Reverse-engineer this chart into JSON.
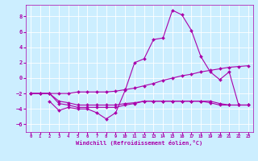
{
  "bg_color": "#cceeff",
  "grid_color": "#ffffff",
  "line_color": "#aa00aa",
  "xlabel": "Windchill (Refroidissement éolien,°C)",
  "xlim": [
    -0.5,
    23.5
  ],
  "ylim": [
    -7,
    9.5
  ],
  "yticks": [
    -6,
    -4,
    -2,
    0,
    2,
    4,
    6,
    8
  ],
  "xticks": [
    0,
    1,
    2,
    3,
    4,
    5,
    6,
    7,
    8,
    9,
    10,
    11,
    12,
    13,
    14,
    15,
    16,
    17,
    18,
    19,
    20,
    21,
    22,
    23
  ],
  "series": [
    {
      "x": [
        0,
        1,
        2,
        3,
        4,
        5,
        6,
        7,
        8,
        9,
        10,
        11,
        12,
        13,
        14,
        15,
        16,
        17,
        18,
        19,
        20,
        21,
        22,
        23
      ],
      "y": [
        -2,
        -2,
        -2,
        -2,
        -2,
        -1.8,
        -1.8,
        -1.8,
        -1.8,
        -1.7,
        -1.5,
        -1.3,
        -1.0,
        -0.7,
        -0.3,
        0,
        0.3,
        0.5,
        0.8,
        1.0,
        1.2,
        1.4,
        1.5,
        1.6
      ]
    },
    {
      "x": [
        0,
        1,
        2,
        3,
        4,
        5,
        6,
        7,
        8,
        9,
        10,
        11,
        12,
        13,
        14,
        15,
        16,
        17,
        18,
        19,
        20,
        21,
        22,
        23
      ],
      "y": [
        -2,
        -2,
        -2,
        -3,
        -3.2,
        -3.5,
        -3.5,
        -3.5,
        -3.5,
        -3.5,
        -3.3,
        -3.2,
        -3.0,
        -3.0,
        -3.0,
        -3.0,
        -3.0,
        -3.0,
        -3.0,
        -3.0,
        -3.3,
        -3.5,
        -3.5,
        -3.5
      ]
    },
    {
      "x": [
        2,
        3,
        4,
        5,
        6,
        7,
        8,
        9,
        10,
        11,
        12,
        13,
        14,
        15,
        16,
        17,
        18,
        19,
        20,
        21,
        22,
        23
      ],
      "y": [
        -3,
        -4.2,
        -3.8,
        -4,
        -4,
        -4.5,
        -5.3,
        -4.5,
        -1.6,
        2,
        2.5,
        5,
        5.2,
        8.8,
        8.2,
        6.2,
        2.8,
        0.8,
        -0.2,
        0.8,
        -3.5,
        -3.5
      ]
    },
    {
      "x": [
        0,
        1,
        2,
        3,
        4,
        5,
        6,
        7,
        8,
        9,
        10,
        11,
        12,
        13,
        14,
        15,
        16,
        17,
        18,
        19,
        20,
        21,
        22,
        23
      ],
      "y": [
        -2,
        -2,
        -2,
        -3.3,
        -3.5,
        -3.8,
        -3.8,
        -3.8,
        -3.8,
        -3.8,
        -3.5,
        -3.3,
        -3.0,
        -3.0,
        -3.0,
        -3.0,
        -3.0,
        -3.0,
        -3.0,
        -3.2,
        -3.5,
        -3.5,
        -3.5,
        -3.5
      ]
    }
  ],
  "marker": "D",
  "markersize": 2,
  "linewidth": 0.8
}
